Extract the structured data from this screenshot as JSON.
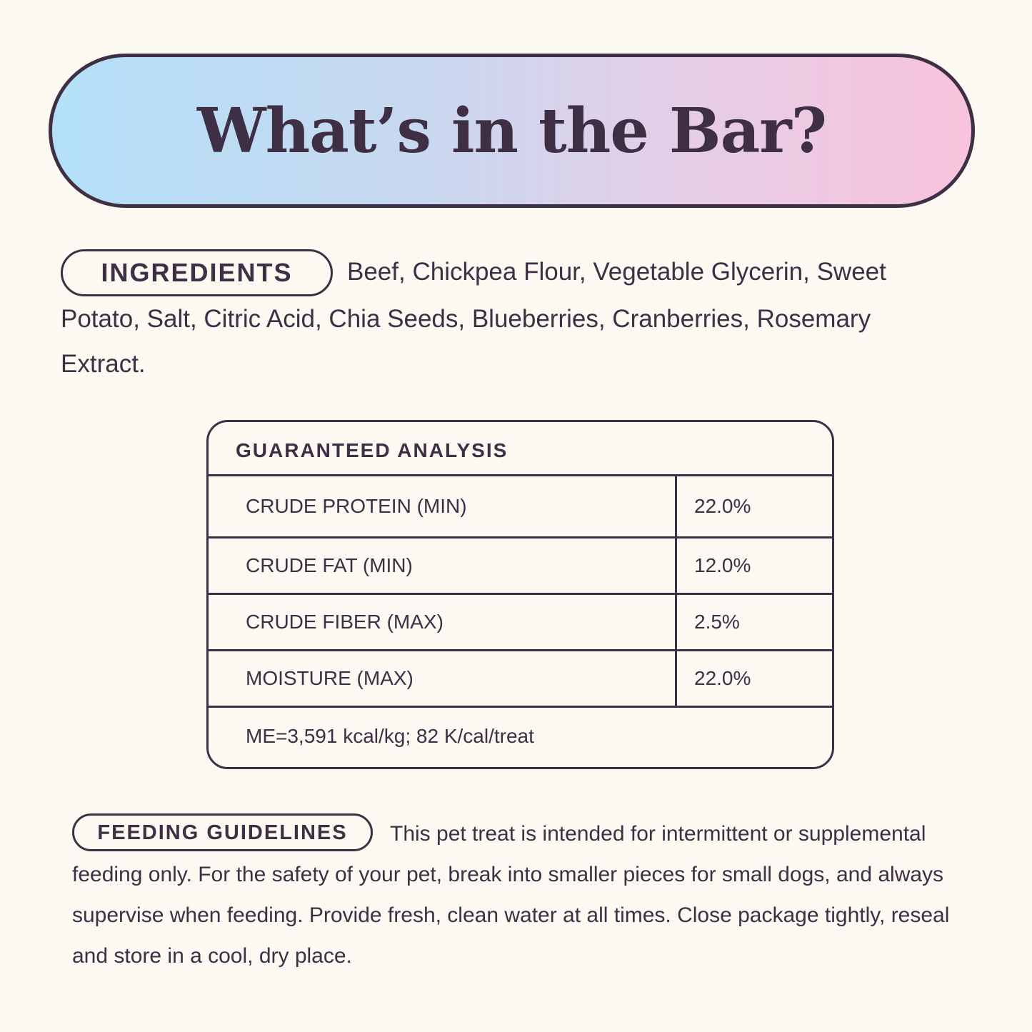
{
  "title": "What’s in the Bar?",
  "colors": {
    "text": "#3f2f45",
    "background": "#fcf8f2",
    "gradient_start": "#b3e0f8",
    "gradient_end": "#f8c3dc"
  },
  "ingredients": {
    "label": "INGREDIENTS",
    "text": "Beef, Chickpea Flour, Vegetable Glycerin, Sweet Potato, Salt, Citric Acid, Chia Seeds, Blueberries, Cranberries, Rosemary Extract."
  },
  "analysis": {
    "header": "GUARANTEED ANALYSIS",
    "rows": [
      {
        "label": "CRUDE PROTEIN (MIN)",
        "value": "22.0%"
      },
      {
        "label": "CRUDE FAT (MIN)",
        "value": "12.0%"
      },
      {
        "label": "CRUDE FIBER (MAX)",
        "value": "2.5%"
      },
      {
        "label": "MOISTURE (MAX)",
        "value": "22.0%"
      }
    ],
    "footer": "ME=3,591 kcal/kg; 82 K/cal/treat"
  },
  "feeding": {
    "label": "FEEDING GUIDELINES",
    "text": "This pet treat is intended for intermittent or supplemental feeding only. For the safety of your pet, break into smaller pieces for small dogs, and always supervise when feeding. Provide fresh, clean water at all times. Close package tightly, reseal and store in a cool, dry place."
  }
}
